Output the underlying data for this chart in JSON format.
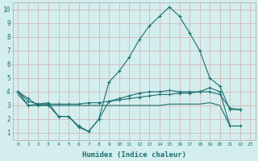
{
  "xlabel": "Humidex (Indice chaleur)",
  "background_color": "#d4eeee",
  "grid_color": "#d4b8b8",
  "line_color": "#1a7070",
  "xlim": [
    -0.5,
    23.5
  ],
  "ylim": [
    0.5,
    10.5
  ],
  "xticks": [
    0,
    1,
    2,
    3,
    4,
    5,
    6,
    7,
    8,
    9,
    10,
    11,
    12,
    13,
    14,
    15,
    16,
    17,
    18,
    19,
    20,
    21,
    22,
    23
  ],
  "yticks": [
    1,
    2,
    3,
    4,
    5,
    6,
    7,
    8,
    9,
    10
  ],
  "series1_x": [
    0,
    1,
    2,
    3,
    4,
    5,
    6,
    7,
    8,
    9,
    10,
    11,
    12,
    13,
    14,
    15,
    16,
    17,
    18,
    19,
    20,
    21,
    22
  ],
  "series1_y": [
    4.0,
    3.5,
    3.0,
    3.0,
    2.2,
    2.2,
    1.4,
    1.1,
    2.0,
    4.7,
    5.5,
    6.5,
    7.8,
    8.8,
    9.5,
    10.2,
    9.5,
    8.3,
    7.0,
    5.0,
    4.4,
    2.7,
    2.7
  ],
  "series2_x": [
    0,
    1,
    2,
    3,
    4,
    5,
    6,
    7,
    8,
    9,
    10,
    11,
    12,
    13,
    14,
    15,
    16,
    17,
    18,
    19,
    20,
    21,
    22
  ],
  "series2_y": [
    4.0,
    3.0,
    3.1,
    3.1,
    3.1,
    3.1,
    3.1,
    3.2,
    3.2,
    3.3,
    3.4,
    3.5,
    3.6,
    3.7,
    3.8,
    3.8,
    3.9,
    3.9,
    4.0,
    4.0,
    3.8,
    2.8,
    2.7
  ],
  "series3_x": [
    0,
    1,
    2,
    3,
    4,
    5,
    6,
    7,
    8,
    9,
    10,
    11,
    12,
    13,
    14,
    15,
    16,
    17,
    18,
    19,
    20,
    21,
    22
  ],
  "series3_y": [
    3.8,
    3.0,
    3.0,
    3.0,
    3.0,
    3.0,
    3.0,
    3.0,
    3.0,
    3.0,
    3.0,
    3.0,
    3.0,
    3.0,
    3.0,
    3.1,
    3.1,
    3.1,
    3.1,
    3.2,
    3.0,
    1.5,
    1.5
  ],
  "series4_x": [
    0,
    1,
    2,
    3,
    4,
    5,
    6,
    7,
    8,
    9,
    10,
    11,
    12,
    13,
    14,
    15,
    16,
    17,
    18,
    19,
    20,
    21,
    22
  ],
  "series4_y": [
    4.0,
    3.3,
    3.1,
    3.2,
    2.2,
    2.2,
    1.5,
    1.1,
    2.0,
    3.3,
    3.5,
    3.7,
    3.9,
    4.0,
    4.0,
    4.1,
    4.0,
    4.0,
    4.0,
    4.3,
    4.0,
    1.5,
    1.5
  ],
  "figsize": [
    3.2,
    2.0
  ],
  "dpi": 100
}
